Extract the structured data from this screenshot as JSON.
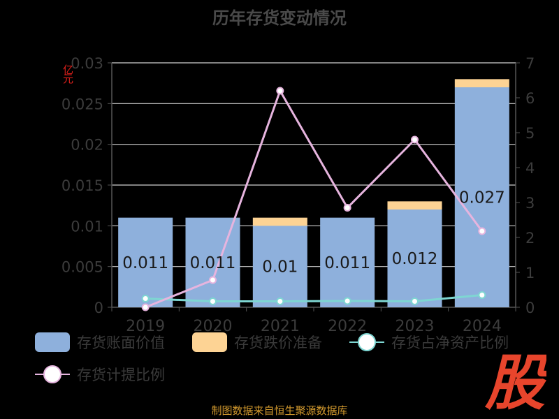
{
  "title": "历年存货变动情况",
  "unit_label": "亿元",
  "footer_text": "制图数据来自恒生聚源数据库",
  "watermark_text": "股",
  "colors": {
    "book_value": "#8eb0dc",
    "reserve": "#fdd394",
    "net_asset_ratio": "#7ed6d2",
    "provision_ratio": "#e6b4de",
    "title": "#4a4a4a",
    "unit": "#e0201b",
    "footer": "#d39a2e",
    "watermark": "#e8452c"
  },
  "legend": [
    {
      "label": "存货账面价值",
      "kind": "box",
      "color": "#8eb0dc"
    },
    {
      "label": "存货跌价准备",
      "kind": "box",
      "color": "#fdd394"
    },
    {
      "label": "存货占净资产比例",
      "kind": "line",
      "color": "#7ed6d2"
    },
    {
      "label": "存货计提比例",
      "kind": "line",
      "color": "#e6b4de"
    }
  ],
  "chart_data": {
    "type": "bar",
    "title": "历年存货变动情况",
    "categories": [
      "2019",
      "2020",
      "2021",
      "2022",
      "2023",
      "2024"
    ],
    "ylabel": "亿元",
    "ylim": [
      0,
      0.03
    ],
    "y_ticks": [
      "0",
      "0.005",
      "0.01",
      "0.015",
      "0.02",
      "0.025",
      "0.03"
    ],
    "y2lim": [
      0,
      7
    ],
    "y2_ticks": [
      "0",
      "1",
      "2",
      "3",
      "4",
      "5",
      "6",
      "7"
    ],
    "grid": true,
    "legend_position": "bottom",
    "series": [
      {
        "name": "存货账面价值",
        "type": "bar",
        "axis": "left",
        "values": [
          0.011,
          0.011,
          0.01,
          0.011,
          0.012,
          0.027
        ],
        "data_labels": [
          "0.011",
          "0.011",
          "0.01",
          "0.011",
          "0.012",
          "0.027"
        ]
      },
      {
        "name": "存货跌价准备",
        "type": "bar",
        "axis": "left",
        "stacked": true,
        "values": [
          0,
          0,
          0.001,
          0,
          0.001,
          0.001
        ]
      },
      {
        "name": "存货占净资产比例",
        "type": "line",
        "axis": "right",
        "values": [
          0.25,
          0.17,
          0.17,
          0.18,
          0.17,
          0.35
        ]
      },
      {
        "name": "存货计提比例",
        "type": "line",
        "axis": "right",
        "values": [
          0.0,
          0.78,
          6.2,
          2.85,
          4.8,
          2.18
        ]
      }
    ]
  }
}
